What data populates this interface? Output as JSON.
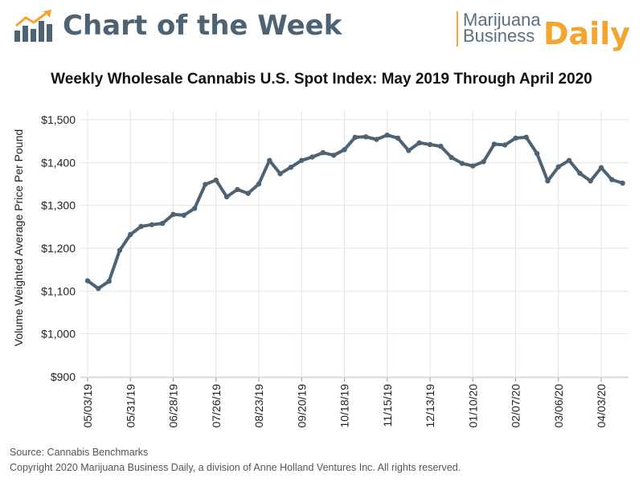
{
  "header": {
    "title": "Chart of the Week",
    "brand_line1": "Marijuana",
    "brand_line2": "Business",
    "brand_daily": "Daily",
    "accent_color": "#f3a530",
    "title_color": "#4d6273",
    "icon": "bar-chart-trend-icon"
  },
  "footer": {
    "source": "Source: Cannabis Benchmarks",
    "copyright": "Copyright 2020 Marijuana Business Daily, a division of Anne Holland Ventures Inc. All rights reserved."
  },
  "chart_data": {
    "type": "line",
    "title": "Weekly Wholesale Cannabis U.S. Spot Index: May 2019 Through April 2020",
    "xlabel": "",
    "ylabel": "Volume Weighted Average Price Per Pound",
    "ylim": [
      900,
      1500
    ],
    "yticks": [
      "$900",
      "$1,000",
      "$1,100",
      "$1,200",
      "$1,300",
      "$1,400",
      "$1,500"
    ],
    "ytick_values": [
      900,
      1000,
      1100,
      1200,
      1300,
      1400,
      1500
    ],
    "xtick_labels": [
      "05/03/19",
      "05/31/19",
      "06/28/19",
      "07/26/19",
      "08/23/19",
      "09/20/19",
      "10/18/19",
      "11/15/19",
      "12/13/19",
      "01/10/20",
      "02/07/20",
      "03/06/20",
      "04/03/20"
    ],
    "xtick_index": [
      0,
      4,
      8,
      12,
      16,
      20,
      24,
      28,
      32,
      36,
      40,
      44,
      48
    ],
    "grid": true,
    "line_color": "#4d6273",
    "series": [
      {
        "values": [
          1124,
          1106,
          1123,
          1195,
          1232,
          1251,
          1255,
          1258,
          1279,
          1277,
          1293,
          1349,
          1359,
          1320,
          1337,
          1328,
          1350,
          1405,
          1374,
          1389,
          1405,
          1413,
          1423,
          1417,
          1430,
          1459,
          1460,
          1454,
          1464,
          1457,
          1428,
          1446,
          1442,
          1438,
          1412,
          1398,
          1392,
          1402,
          1443,
          1441,
          1457,
          1459,
          1421,
          1357,
          1390,
          1405,
          1375,
          1357,
          1388,
          1360,
          1352
        ]
      }
    ]
  }
}
